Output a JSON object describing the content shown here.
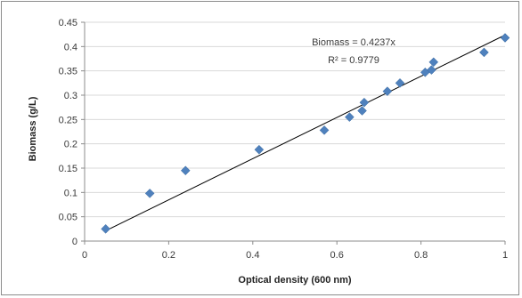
{
  "chart_data": {
    "type": "scatter",
    "xlabel": "Optical density (600 nm)",
    "ylabel": "Biomass (g/L)",
    "xlim": [
      0,
      1
    ],
    "ylim": [
      0,
      0.45
    ],
    "x_ticks": [
      "0",
      "0.2",
      "0.4",
      "0.6",
      "0.8",
      "1"
    ],
    "y_ticks": [
      "0",
      "0.05",
      "0.1",
      "0.15",
      "0.2",
      "0.25",
      "0.3",
      "0.35",
      "0.4",
      "0.45"
    ],
    "grid": "horizontal",
    "legend": "none",
    "marker_color": "#4f81bd",
    "trendline_color": "#000000",
    "points": [
      {
        "x": 0.05,
        "y": 0.025
      },
      {
        "x": 0.155,
        "y": 0.098
      },
      {
        "x": 0.24,
        "y": 0.145
      },
      {
        "x": 0.415,
        "y": 0.188
      },
      {
        "x": 0.57,
        "y": 0.228
      },
      {
        "x": 0.63,
        "y": 0.255
      },
      {
        "x": 0.66,
        "y": 0.268
      },
      {
        "x": 0.665,
        "y": 0.285
      },
      {
        "x": 0.72,
        "y": 0.308
      },
      {
        "x": 0.75,
        "y": 0.325
      },
      {
        "x": 0.81,
        "y": 0.347
      },
      {
        "x": 0.825,
        "y": 0.352
      },
      {
        "x": 0.83,
        "y": 0.368
      },
      {
        "x": 0.95,
        "y": 0.388
      },
      {
        "x": 1.0,
        "y": 0.418
      }
    ],
    "trendline": {
      "slope": 0.4237,
      "intercept": 0,
      "x_range": [
        0.05,
        1.0
      ]
    },
    "annotations": [
      "Biomass = 0.4237x",
      "R² = 0.9779"
    ]
  }
}
